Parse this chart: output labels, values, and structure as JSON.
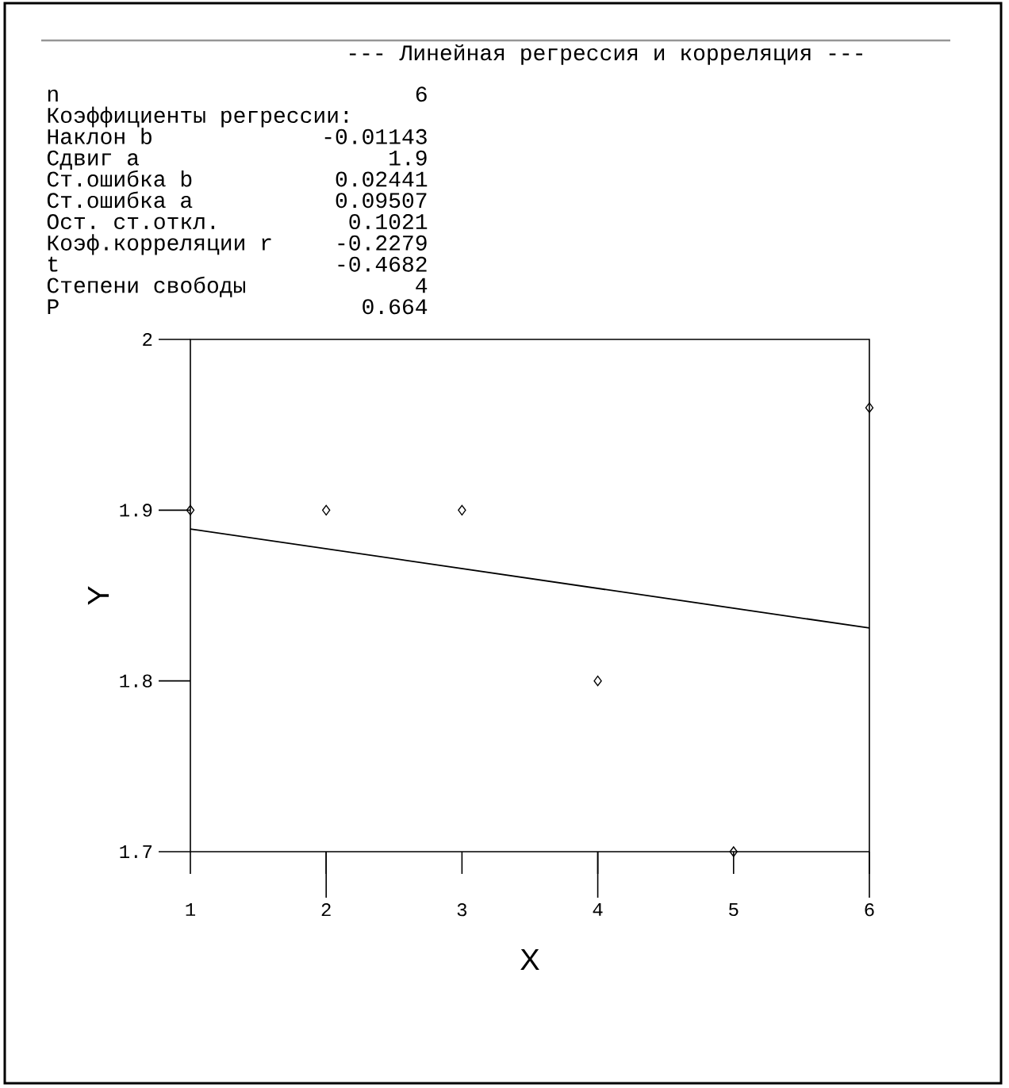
{
  "chart_data": {
    "type": "scatter",
    "title": "--- Линейная регрессия и корреляция ---",
    "xlabel": "X",
    "ylabel": "Y",
    "annotations": [
      "n",
      "6",
      "Коэффициенты регрессии:",
      "Наклон b",
      "-0.01143",
      "Сдвиг a",
      "1.9",
      "Ст.ошибка b",
      "0.02441",
      "Ст.ошибка a",
      "0.09507",
      "Ост. ст.откл.",
      "0.1021",
      "Коэф.корреляции r",
      "-0.2279",
      "t",
      "-0.4682",
      "Степени свободы",
      "4",
      "P",
      "0.664"
    ],
    "series": [
      {
        "type": "scatter",
        "color": "#000000",
        "x": [
          1,
          2,
          3,
          4,
          5,
          6
        ],
        "values": [
          1.9,
          1.9,
          1.9,
          1.8,
          1.7,
          1.96
        ]
      },
      {
        "type": "line",
        "color": "#000000",
        "marker": "none",
        "x": [
          1,
          6
        ],
        "values": [
          1.889,
          1.831
        ]
      }
    ],
    "marker": "diamond",
    "xlim": [
      1,
      6
    ],
    "ylim": [
      1.7,
      2
    ],
    "xticks": [
      1,
      2,
      3,
      4,
      5,
      6
    ],
    "yticks": [
      1.7,
      1.8,
      1.9,
      2
    ]
  }
}
